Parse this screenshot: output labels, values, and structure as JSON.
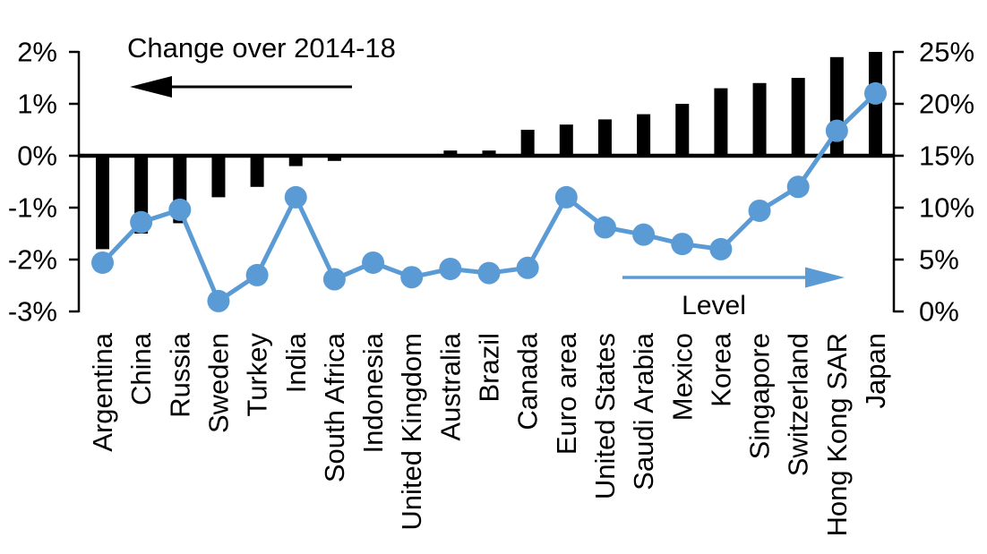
{
  "chart_data": {
    "type": "bar",
    "title": "Change over 2014-18",
    "categories": [
      "Argentina",
      "China",
      "Russia",
      "Sweden",
      "Turkey",
      "India",
      "South Africa",
      "Indonesia",
      "United Kingdom",
      "Australia",
      "Brazil",
      "Canada",
      "Euro area",
      "United States",
      "Saudi Arabia",
      "Mexico",
      "Korea",
      "Singapore",
      "Switzerland",
      "Hong Kong SAR",
      "Japan"
    ],
    "series": [
      {
        "name": "Change over 2014-18",
        "type": "bar",
        "axis": "left",
        "color": "#000000",
        "values": [
          -1.8,
          -1.5,
          -1.3,
          -0.8,
          -0.6,
          -0.2,
          -0.1,
          0,
          0,
          0.1,
          0.1,
          0.5,
          0.6,
          0.7,
          0.8,
          1.0,
          1.3,
          1.4,
          1.5,
          1.9,
          2.0
        ]
      },
      {
        "name": "Level",
        "type": "line",
        "axis": "right",
        "color": "#5B9BD5",
        "values": [
          4.7,
          8.6,
          9.8,
          1.0,
          3.5,
          11.0,
          3.1,
          4.7,
          3.3,
          4.1,
          3.7,
          4.2,
          11.0,
          8.1,
          7.4,
          6.5,
          6.0,
          9.7,
          12.0,
          17.4,
          21.0
        ]
      }
    ],
    "left_axis": {
      "min": -3,
      "max": 2,
      "step": 1,
      "tick_labels": [
        "2%",
        "1%",
        "0%",
        "-1%",
        "-2%",
        "-3%"
      ],
      "unit": "%"
    },
    "right_axis": {
      "min": 0,
      "max": 25,
      "step": 5,
      "tick_labels": [
        "25%",
        "20%",
        "15%",
        "10%",
        "5%",
        "0%"
      ],
      "unit": "%"
    },
    "annotations": {
      "bar_series_label": "Change over 2014-18",
      "bar_arrow_direction": "left",
      "bar_arrow_color": "#000000",
      "line_series_label": "Level",
      "line_arrow_direction": "right",
      "line_arrow_color": "#5B9BD5"
    },
    "colors": {
      "bar": "#000000",
      "line": "#5B9BD5",
      "background": "#ffffff"
    },
    "grid": false,
    "legend_position": "none"
  }
}
